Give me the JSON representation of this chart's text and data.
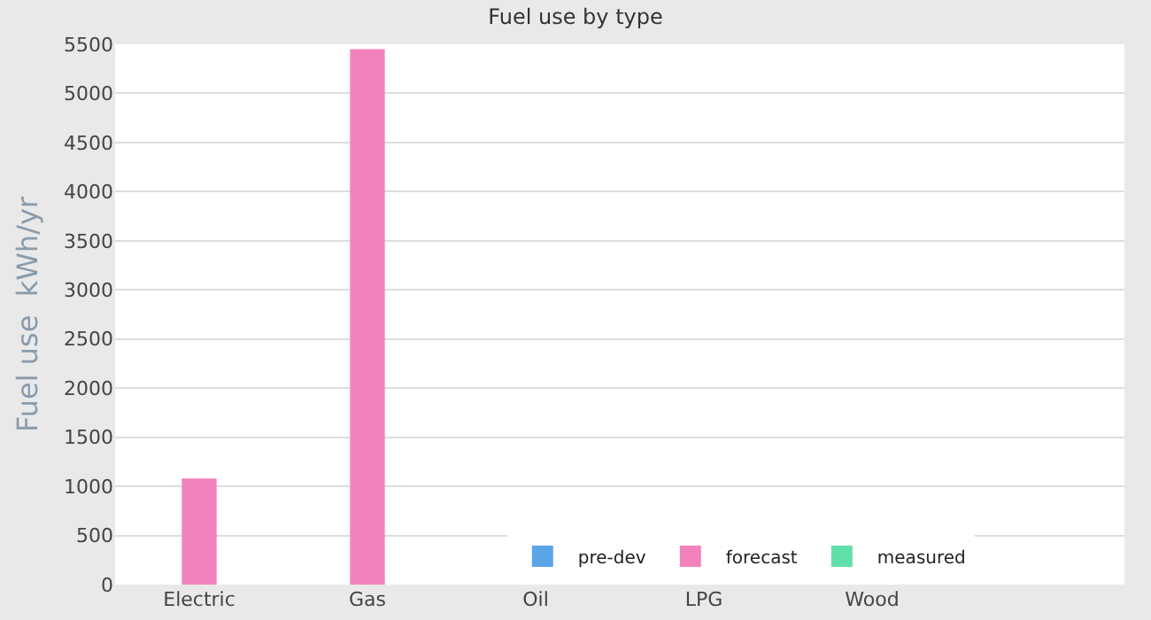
{
  "chart_data": {
    "type": "bar",
    "title": "Fuel use by type",
    "ylabel": "Fuel use  kWh/yr",
    "categories": [
      "Electric",
      "Gas",
      "Oil",
      "LPG",
      "Wood",
      null
    ],
    "series": [
      {
        "name": "pre-dev",
        "color": "#5aa5e8",
        "values": [
          0,
          0,
          0,
          0,
          0,
          null
        ]
      },
      {
        "name": "forecast",
        "color": "#f282bb",
        "values": [
          1080,
          5450,
          0,
          0,
          0,
          null
        ]
      },
      {
        "name": "measured",
        "color": "#5fe0a8",
        "values": [
          0,
          0,
          0,
          0,
          0,
          null
        ]
      }
    ],
    "ylim": [
      0,
      5500
    ],
    "yticks": [
      0,
      500,
      1000,
      1500,
      2000,
      2500,
      3000,
      3500,
      4000,
      4500,
      5000,
      5500
    ],
    "grid": "y",
    "legend": "bottom"
  }
}
